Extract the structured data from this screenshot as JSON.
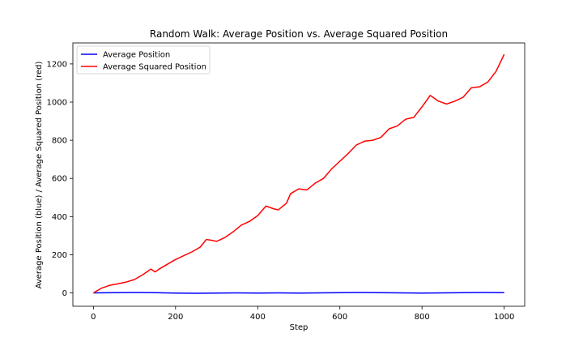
{
  "chart_data": {
    "type": "line",
    "title": "Random Walk: Average Position vs. Average Squared Position",
    "xlabel": "Step",
    "ylabel": "Average Position (blue) / Average Squared Position (red)",
    "xlim": [
      -50,
      1050
    ],
    "ylim": [
      -70,
      1310
    ],
    "xticks": [
      0,
      200,
      400,
      600,
      800,
      1000
    ],
    "yticks": [
      0,
      200,
      400,
      600,
      800,
      1000,
      1200
    ],
    "grid": false,
    "legend_position": "top-left",
    "series": [
      {
        "name": "Average Position",
        "color": "#0000ff",
        "x": [
          0,
          50,
          100,
          150,
          200,
          250,
          300,
          350,
          400,
          450,
          500,
          550,
          600,
          650,
          700,
          750,
          800,
          850,
          900,
          950,
          1000
        ],
        "y": [
          0,
          1,
          2,
          1,
          -1,
          -2,
          -1,
          0,
          -1,
          0,
          -1,
          0,
          1,
          2,
          1,
          0,
          -1,
          0,
          1,
          2,
          1
        ]
      },
      {
        "name": "Average Squared Position",
        "color": "#ff0000",
        "x": [
          0,
          20,
          40,
          60,
          80,
          100,
          120,
          140,
          150,
          160,
          180,
          200,
          220,
          240,
          260,
          275,
          290,
          300,
          320,
          340,
          360,
          380,
          400,
          420,
          440,
          450,
          470,
          480,
          500,
          520,
          540,
          560,
          580,
          600,
          620,
          640,
          660,
          680,
          700,
          720,
          740,
          760,
          780,
          800,
          820,
          840,
          860,
          880,
          900,
          920,
          940,
          960,
          980,
          1000
        ],
        "y": [
          0,
          25,
          40,
          48,
          57,
          70,
          95,
          125,
          110,
          125,
          150,
          175,
          195,
          215,
          240,
          280,
          275,
          270,
          290,
          320,
          355,
          375,
          405,
          455,
          440,
          435,
          470,
          520,
          545,
          540,
          575,
          600,
          650,
          690,
          730,
          775,
          795,
          800,
          815,
          860,
          875,
          910,
          920,
          975,
          1035,
          1005,
          990,
          1005,
          1025,
          1075,
          1080,
          1105,
          1160,
          1250
        ]
      }
    ]
  }
}
